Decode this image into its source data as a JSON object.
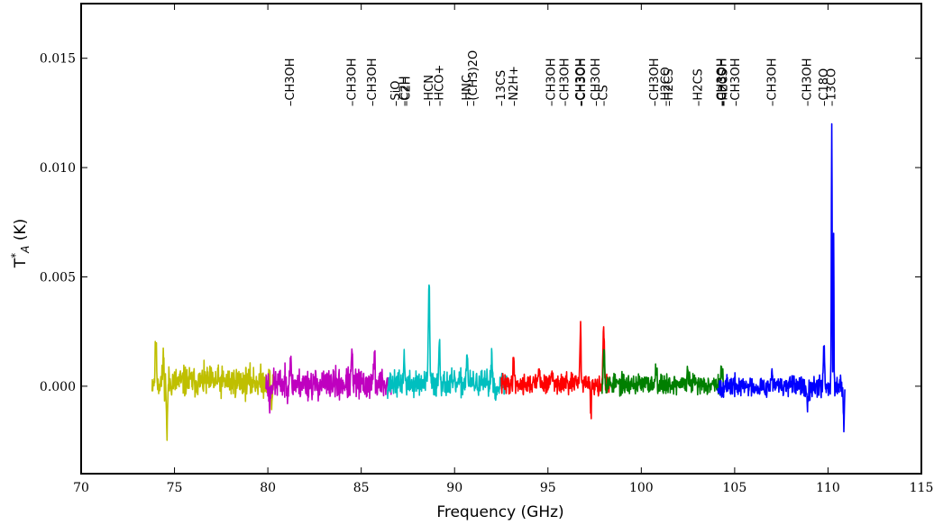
{
  "chart_data": {
    "type": "line",
    "xlabel": "Frequency (GHz)",
    "ylabel": "T*A (K)",
    "ylabel_main": "T",
    "ylabel_sup": "*",
    "ylabel_sub": "A",
    "ylabel_rest": " (K)",
    "xlim": [
      70,
      115
    ],
    "ylim": [
      -0.004,
      0.0175
    ],
    "xticks": [
      70,
      75,
      80,
      85,
      90,
      95,
      100,
      105,
      110,
      115
    ],
    "xtick_labels": [
      "70",
      "75",
      "80",
      "85",
      "90",
      "95",
      "100",
      "105",
      "110",
      "115"
    ],
    "yticks": [
      0.0,
      0.005,
      0.01,
      0.015
    ],
    "ytick_labels": [
      "0.000",
      "0.005",
      "0.010",
      "0.015"
    ],
    "grid": false,
    "series": [
      {
        "color": "#bfbf00",
        "range": [
          73.8,
          80.3
        ],
        "noise": 0.0006,
        "base": 0.0002,
        "seed": 11,
        "features": [
          [
            74.0,
            0.0018,
            0.05
          ],
          [
            74.6,
            -0.0025,
            0.04
          ],
          [
            74.4,
            0.0012,
            0.04
          ],
          [
            80.2,
            -0.0012,
            0.04
          ]
        ]
      },
      {
        "color": "#bf00bf",
        "range": [
          79.9,
          86.6
        ],
        "noise": 0.0006,
        "base": 0.0001,
        "seed": 23,
        "features": [
          [
            81.2,
            0.0012,
            0.05
          ],
          [
            84.5,
            0.0013,
            0.05
          ],
          [
            85.7,
            0.0012,
            0.05
          ],
          [
            80.1,
            -0.001,
            0.04
          ]
        ]
      },
      {
        "color": "#00bfbf",
        "range": [
          86.4,
          92.8
        ],
        "noise": 0.0005,
        "base": 0.0001,
        "seed": 37,
        "features": [
          [
            88.63,
            0.0047,
            0.05
          ],
          [
            89.19,
            0.0021,
            0.05
          ],
          [
            87.3,
            0.0012,
            0.05
          ],
          [
            90.66,
            0.0015,
            0.05
          ],
          [
            91.99,
            0.0013,
            0.05
          ],
          [
            92.2,
            -0.0008,
            0.04
          ]
        ]
      },
      {
        "color": "#ff0000",
        "range": [
          92.5,
          98.3
        ],
        "noise": 0.0004,
        "base": 0.0001,
        "seed": 41,
        "features": [
          [
            93.17,
            0.0012,
            0.05
          ],
          [
            94.5,
            0.0009,
            0.05
          ],
          [
            96.74,
            0.0025,
            0.05
          ],
          [
            97.98,
            0.0026,
            0.05
          ],
          [
            97.3,
            -0.0012,
            0.05
          ],
          [
            95.2,
            0.0006,
            0.05
          ]
        ]
      },
      {
        "color": "#007f00",
        "range": [
          97.9,
          104.4
        ],
        "noise": 0.0004,
        "base": 0.0001,
        "seed": 53,
        "features": [
          [
            98.0,
            0.0018,
            0.05
          ],
          [
            100.8,
            0.0008,
            0.06
          ],
          [
            102.5,
            0.0006,
            0.05
          ],
          [
            104.3,
            0.0006,
            0.05
          ]
        ]
      },
      {
        "color": "#0000ff",
        "range": [
          104.1,
          110.9
        ],
        "noise": 0.0004,
        "base": 0.0,
        "seed": 67,
        "features": [
          [
            110.2,
            0.0121,
            0.03
          ],
          [
            110.3,
            0.0068,
            0.025
          ],
          [
            109.78,
            0.0019,
            0.05
          ],
          [
            107.0,
            0.0007,
            0.05
          ],
          [
            108.9,
            -0.0007,
            0.05
          ],
          [
            110.85,
            -0.0015,
            0.04
          ]
        ]
      }
    ],
    "annotations": [
      {
        "x": 81.2,
        "label": "CH3OH"
      },
      {
        "x": 84.5,
        "label": "CH3OH"
      },
      {
        "x": 85.6,
        "label": "CH3OH"
      },
      {
        "x": 86.85,
        "label": "SiO"
      },
      {
        "x": 87.3,
        "label": "C2H"
      },
      {
        "x": 87.4,
        "label": "C2H"
      },
      {
        "x": 88.63,
        "label": "HCN"
      },
      {
        "x": 89.19,
        "label": "HCO+"
      },
      {
        "x": 90.66,
        "label": "HNC"
      },
      {
        "x": 91.0,
        "label": "(CH3)2O"
      },
      {
        "x": 92.49,
        "label": "13CS"
      },
      {
        "x": 93.17,
        "label": "N2H+"
      },
      {
        "x": 95.17,
        "label": "CH3OH"
      },
      {
        "x": 95.91,
        "label": "CH3OH"
      },
      {
        "x": 96.74,
        "label": "CH3OH"
      },
      {
        "x": 96.8,
        "label": "CH3OH"
      },
      {
        "x": 97.58,
        "label": "CH3OH"
      },
      {
        "x": 97.98,
        "label": "CS"
      },
      {
        "x": 100.7,
        "label": "CH3OH"
      },
      {
        "x": 101.3,
        "label": "H2CO"
      },
      {
        "x": 101.48,
        "label": "H2CS"
      },
      {
        "x": 103.04,
        "label": "H2CS"
      },
      {
        "x": 104.3,
        "label": "CH3OH"
      },
      {
        "x": 104.35,
        "label": "CH3OH"
      },
      {
        "x": 104.4,
        "label": "H2CS"
      },
      {
        "x": 105.06,
        "label": "CH3OH"
      },
      {
        "x": 107.01,
        "label": "CH3OH"
      },
      {
        "x": 108.89,
        "label": "CH3OH"
      },
      {
        "x": 109.78,
        "label": "C18O"
      },
      {
        "x": 110.2,
        "label": "13CO"
      }
    ],
    "annotation_y": 0.0128
  }
}
